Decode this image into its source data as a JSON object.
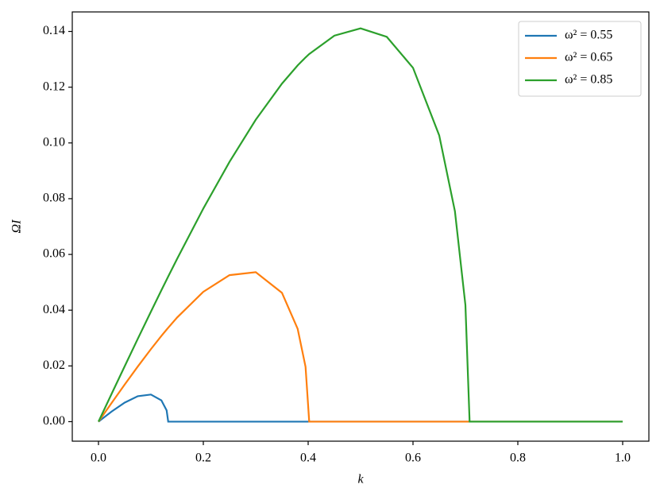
{
  "chart_data": {
    "type": "line",
    "x_label": "k",
    "y_label": "ΩI",
    "x": [
      0,
      0.025,
      0.05,
      0.075,
      0.1,
      0.12,
      0.13,
      0.133,
      0.15,
      0.2,
      0.25,
      0.3,
      0.35,
      0.38,
      0.395,
      0.402,
      0.45,
      0.5,
      0.55,
      0.6,
      0.65,
      0.68,
      0.7,
      0.708,
      0.75,
      0.8,
      0.9,
      1.0
    ],
    "series": [
      {
        "name": "ω² = 0.55",
        "color": "#1f77b4",
        "values": [
          0,
          0.00363,
          0.00684,
          0.00914,
          0.00973,
          0.00764,
          0.00405,
          0,
          0,
          0,
          0,
          0,
          0,
          0,
          0,
          0,
          0,
          0,
          0,
          0,
          0,
          0,
          0,
          0,
          0,
          0,
          0,
          0
        ]
      },
      {
        "name": "ω² = 0.65",
        "color": "#ff7f0e",
        "values": [
          0,
          0.0067,
          0.01332,
          0.01979,
          0.02601,
          0.03076,
          0.03303,
          0.0337,
          0.03737,
          0.04659,
          0.05257,
          0.05362,
          0.04623,
          0.03329,
          0.01971,
          0,
          0,
          0,
          0,
          0,
          0,
          0,
          0,
          0,
          0,
          0,
          0,
          0
        ]
      },
      {
        "name": "ω² = 0.85",
        "color": "#2ca02c",
        "values": [
          0,
          0.00996,
          0.01988,
          0.02973,
          0.03946,
          0.04714,
          0.05094,
          0.05207,
          0.05843,
          0.07647,
          0.09323,
          0.10832,
          0.12127,
          0.12781,
          0.13067,
          0.1319,
          0.13848,
          0.14111,
          0.13805,
          0.12696,
          0.1027,
          0.07547,
          0.04183,
          0,
          0,
          0,
          0,
          0
        ]
      }
    ],
    "xlim": [
      -0.05,
      1.05
    ],
    "ylim": [
      -0.007,
      0.147
    ],
    "xticks": [
      {
        "value": 0,
        "label": "0.0"
      },
      0.2,
      0.4,
      0.6,
      0.8,
      {
        "value": 1,
        "label": "1.0"
      }
    ],
    "yticks": [
      {
        "value": 0,
        "label": "0.00"
      },
      {
        "value": 0.02,
        "label": "0.02"
      },
      {
        "value": 0.04,
        "label": "0.04"
      },
      {
        "value": 0.06,
        "label": "0.06"
      },
      {
        "value": 0.08,
        "label": "0.08"
      },
      {
        "value": 0.1,
        "label": "0.10"
      },
      {
        "value": 0.12,
        "label": "0.12"
      },
      {
        "value": 0.14,
        "label": "0.14"
      }
    ],
    "legend": "upper right"
  }
}
